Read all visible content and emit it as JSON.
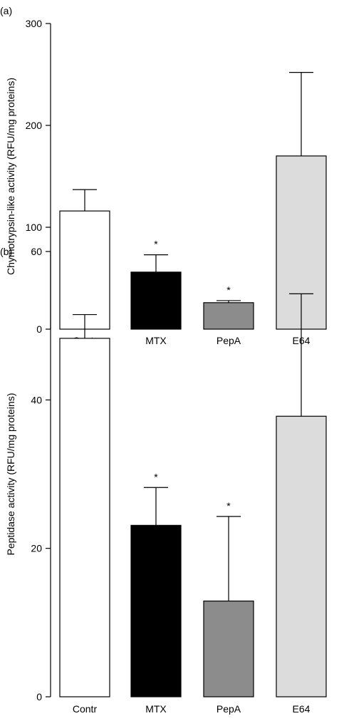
{
  "chart_data": [
    {
      "type": "bar",
      "panel_label": "(a)",
      "categories": [
        "Contr",
        "MTX",
        "PepA",
        "E64"
      ],
      "values": [
        116,
        56,
        26,
        170
      ],
      "errors": [
        21,
        17,
        2,
        82
      ],
      "significance": [
        "",
        "*",
        "*",
        ""
      ],
      "bar_colors": [
        "#ffffff",
        "#000000",
        "#8c8c8c",
        "#dcdcdc"
      ],
      "ylabel": "Chymotrypsin-like activity (RFU/mg proteins)",
      "ylim": [
        0,
        300
      ],
      "yticks": [
        0,
        100,
        200,
        300
      ],
      "grid": false,
      "legend": "none"
    },
    {
      "type": "bar",
      "panel_label": "(b)",
      "categories": [
        "Contr",
        "MTX",
        "PepA",
        "E64"
      ],
      "values": [
        48.3,
        23.1,
        12.9,
        37.8
      ],
      "errors": [
        3.2,
        5.1,
        11.4,
        16.5
      ],
      "significance": [
        "",
        "*",
        "*",
        ""
      ],
      "bar_colors": [
        "#ffffff",
        "#000000",
        "#8c8c8c",
        "#dcdcdc"
      ],
      "ylabel": "Peptidase activity (RFU/mg proteins)",
      "ylim": [
        0,
        60
      ],
      "yticks": [
        0,
        20,
        40,
        60
      ],
      "grid": false,
      "legend": "none"
    }
  ]
}
